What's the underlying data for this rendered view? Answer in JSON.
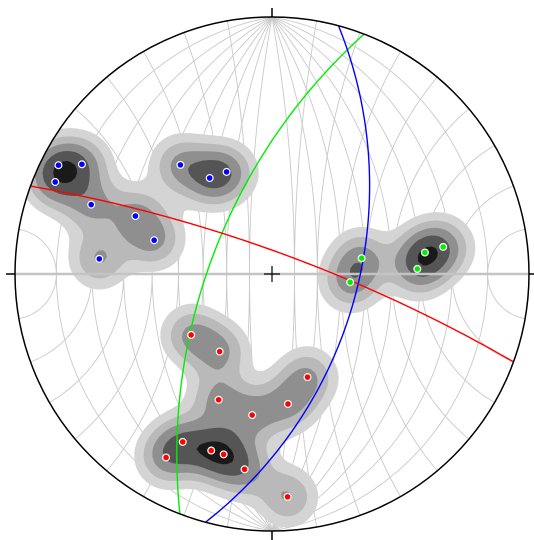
{
  "net": {
    "type": "equal-angle stereonet",
    "grid_interval_deg": 10,
    "frame_color": "#000000",
    "grid_color": "#c9c9c9",
    "cardinal_tick_marks": [
      "north",
      "south",
      "east",
      "west"
    ],
    "center_mark": "cross"
  },
  "density_contours": {
    "shading": "greyscale",
    "palette": [
      "#d4d4d4",
      "#b9b9b9",
      "#8f8f8f",
      "#555555",
      "#1a1a1a"
    ]
  },
  "pole_sets": [
    {
      "id": "set-1",
      "color": "#0000ff",
      "poles": [
        {
          "trend": 327,
          "plunge": 42
        },
        {
          "trend": 336,
          "plunge": 43
        },
        {
          "trend": 320,
          "plunge": 32
        },
        {
          "trend": 300,
          "plunge": 9
        },
        {
          "trend": 297,
          "plunge": 4
        },
        {
          "trend": 293,
          "plunge": 5
        },
        {
          "trend": 291,
          "plunge": 16
        },
        {
          "trend": 293,
          "plunge": 30
        },
        {
          "trend": 286,
          "plunge": 39
        },
        {
          "trend": 275,
          "plunge": 22
        }
      ]
    },
    {
      "id": "set-2",
      "color": "#00ee00",
      "poles": [
        {
          "trend": 80,
          "plunge": 51
        },
        {
          "trend": 96,
          "plunge": 56
        },
        {
          "trend": 81,
          "plunge": 22
        },
        {
          "trend": 82,
          "plunge": 28
        },
        {
          "trend": 88,
          "plunge": 31
        }
      ]
    },
    {
      "id": "set-3",
      "color": "#ff0000",
      "poles": [
        {
          "trend": 233,
          "plunge": 47
        },
        {
          "trend": 214,
          "plunge": 50
        },
        {
          "trend": 203,
          "plunge": 34
        },
        {
          "trend": 188,
          "plunge": 32
        },
        {
          "trend": 199,
          "plunge": 18
        },
        {
          "trend": 208,
          "plunge": 17
        },
        {
          "trend": 195,
          "plunge": 18
        },
        {
          "trend": 188,
          "plunge": 15
        },
        {
          "trend": 210,
          "plunge": 11
        },
        {
          "trend": 173,
          "plunge": 36
        },
        {
          "trend": 161,
          "plunge": 44
        },
        {
          "trend": 176,
          "plunge": 8
        }
      ]
    }
  ],
  "mean_planes": [
    {
      "set": "set-1",
      "color": "#00ee00",
      "strike": 201,
      "dip": 63
    },
    {
      "set": "set-2",
      "color": "#0000ff",
      "strike": 15,
      "dip": 53
    },
    {
      "set": "set-3",
      "color": "#ff0000",
      "strike": 290,
      "dip": 80
    }
  ]
}
